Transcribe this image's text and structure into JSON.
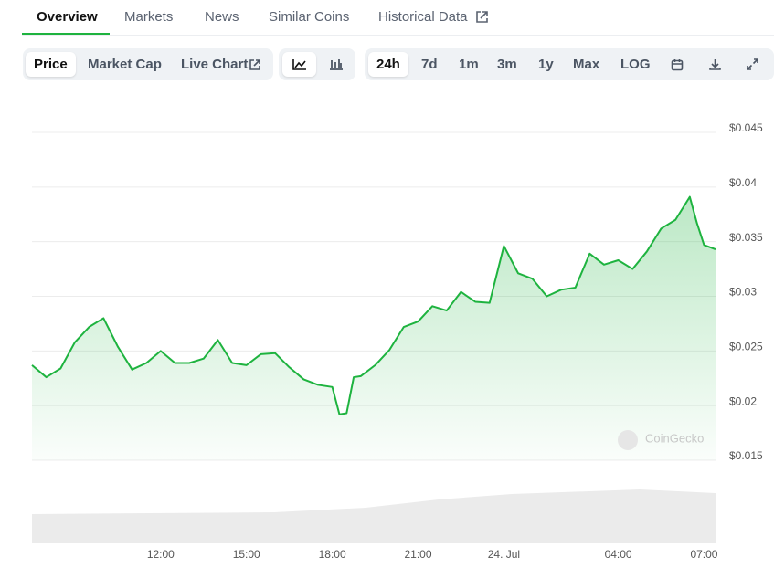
{
  "tabs": [
    "Overview",
    "Markets",
    "News",
    "Similar Coins",
    "Historical Data"
  ],
  "data_modes": [
    "Price",
    "Market Cap",
    "Live Chart"
  ],
  "ranges": [
    "24h",
    "7d",
    "1m",
    "3m",
    "1y",
    "Max",
    "LOG"
  ],
  "watermark": "CoinGecko",
  "chart_data": {
    "type": "line",
    "color": "#1eb33f",
    "grid": true,
    "x": [
      7.5,
      8.0,
      8.5,
      9.0,
      9.5,
      10.0,
      10.5,
      11.0,
      11.5,
      12.0,
      12.5,
      13.0,
      13.5,
      14.0,
      14.5,
      15.0,
      15.5,
      16.0,
      16.5,
      17.0,
      17.5,
      18.0,
      18.25,
      18.5,
      18.75,
      19.0,
      19.5,
      20.0,
      20.5,
      21.0,
      21.5,
      22.0,
      22.5,
      23.0,
      23.5,
      24.0,
      24.5,
      25.0,
      25.5,
      26.0,
      26.5,
      27.0,
      27.5,
      28.0,
      28.5,
      29.0,
      29.5,
      30.0,
      30.5,
      30.75,
      31.0,
      31.4
    ],
    "series": [
      {
        "name": "Price",
        "color": "#1eb33f",
        "values": [
          0.0237,
          0.0226,
          0.0234,
          0.0258,
          0.0272,
          0.028,
          0.0254,
          0.0233,
          0.0239,
          0.025,
          0.0239,
          0.0239,
          0.0243,
          0.026,
          0.0239,
          0.0237,
          0.0247,
          0.0248,
          0.0235,
          0.0224,
          0.0219,
          0.0217,
          0.0192,
          0.0193,
          0.0226,
          0.0227,
          0.0237,
          0.0251,
          0.0272,
          0.0277,
          0.0291,
          0.0287,
          0.0304,
          0.0295,
          0.0294,
          0.0346,
          0.0321,
          0.0316,
          0.03,
          0.0306,
          0.0308,
          0.0339,
          0.0329,
          0.0333,
          0.0325,
          0.0341,
          0.0362,
          0.037,
          0.0391,
          0.0367,
          0.0347,
          0.0343
        ]
      }
    ],
    "xlim": [
      7.5,
      31.4
    ],
    "xticks": [
      {
        "value": 12,
        "label": "12:00"
      },
      {
        "value": 15,
        "label": "15:00"
      },
      {
        "value": 18,
        "label": "18:00"
      },
      {
        "value": 21,
        "label": "21:00"
      },
      {
        "value": 24,
        "label": "24. Jul"
      },
      {
        "value": 28,
        "label": "04:00"
      },
      {
        "value": 31,
        "label": "07:00"
      }
    ],
    "ylim": [
      0.015,
      0.045
    ],
    "yticks": [
      {
        "value": 0.015,
        "label": "$0.015"
      },
      {
        "value": 0.02,
        "label": "$0.02"
      },
      {
        "value": 0.025,
        "label": "$0.025"
      },
      {
        "value": 0.03,
        "label": "$0.03"
      },
      {
        "value": 0.035,
        "label": "$0.035"
      },
      {
        "value": 0.04,
        "label": "$0.04"
      },
      {
        "value": 0.045,
        "label": "$0.045"
      }
    ]
  }
}
